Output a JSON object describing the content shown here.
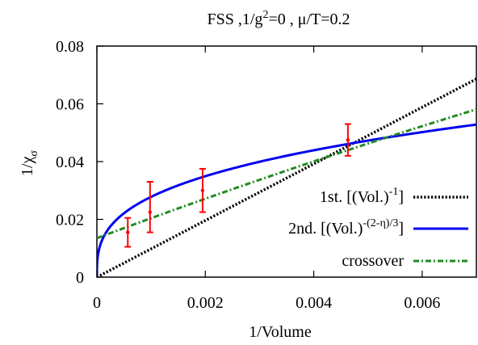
{
  "chart_data": {
    "type": "scatter",
    "title": {
      "main": "FSS ,1/g",
      "sup": "2",
      "rest": "=0 , μ/T=0.2"
    },
    "xlabel": "1/Volume",
    "ylabel": {
      "main": "1/χ",
      "sub": "σ"
    },
    "xlim": [
      0,
      0.007
    ],
    "ylim": [
      0,
      0.08
    ],
    "x_ticks": [
      0,
      0.002,
      0.004,
      0.006
    ],
    "x_tick_labels": [
      "0",
      "0.002",
      "0.004",
      "0.006"
    ],
    "y_ticks": [
      0,
      0.02,
      0.04,
      0.06,
      0.08
    ],
    "y_tick_labels": [
      "0",
      "0.02",
      "0.04",
      "0.06",
      "0.08"
    ],
    "grid": false,
    "legend_position": "bottom-right",
    "points": [
      {
        "x": 0.00057,
        "y": 0.0155,
        "ylow": 0.0105,
        "yhigh": 0.0205
      },
      {
        "x": 0.00098,
        "y": 0.0225,
        "ylow": 0.0155,
        "yhigh": 0.033
      },
      {
        "x": 0.00195,
        "y": 0.03,
        "ylow": 0.0225,
        "yhigh": 0.0375
      },
      {
        "x": 0.00463,
        "y": 0.0475,
        "ylow": 0.042,
        "yhigh": 0.053
      }
    ],
    "point_color": "#ff0000",
    "series": [
      {
        "key": "first",
        "legend": {
          "main": "1st. [(Vol.)",
          "sup": "-1",
          "end": "]"
        },
        "color": "#000000",
        "style": "dotted",
        "model": "linear",
        "slope": 9.8,
        "intercept": 0
      },
      {
        "key": "second",
        "legend": {
          "main": "2nd. [(Vol.)",
          "sup": "-(2-η)/3",
          "end": "]"
        },
        "color": "#0000ee",
        "style": "solid",
        "model": "power",
        "coef": 0.2716,
        "exponent": 0.33
      },
      {
        "key": "crossover",
        "legend": {
          "main": "crossover",
          "sup": "",
          "end": ""
        },
        "color": "#228b22",
        "style": "dashdot",
        "model": "crossover",
        "intercept": 0.0135,
        "slope": 7.0,
        "curvature": 90
      }
    ]
  }
}
